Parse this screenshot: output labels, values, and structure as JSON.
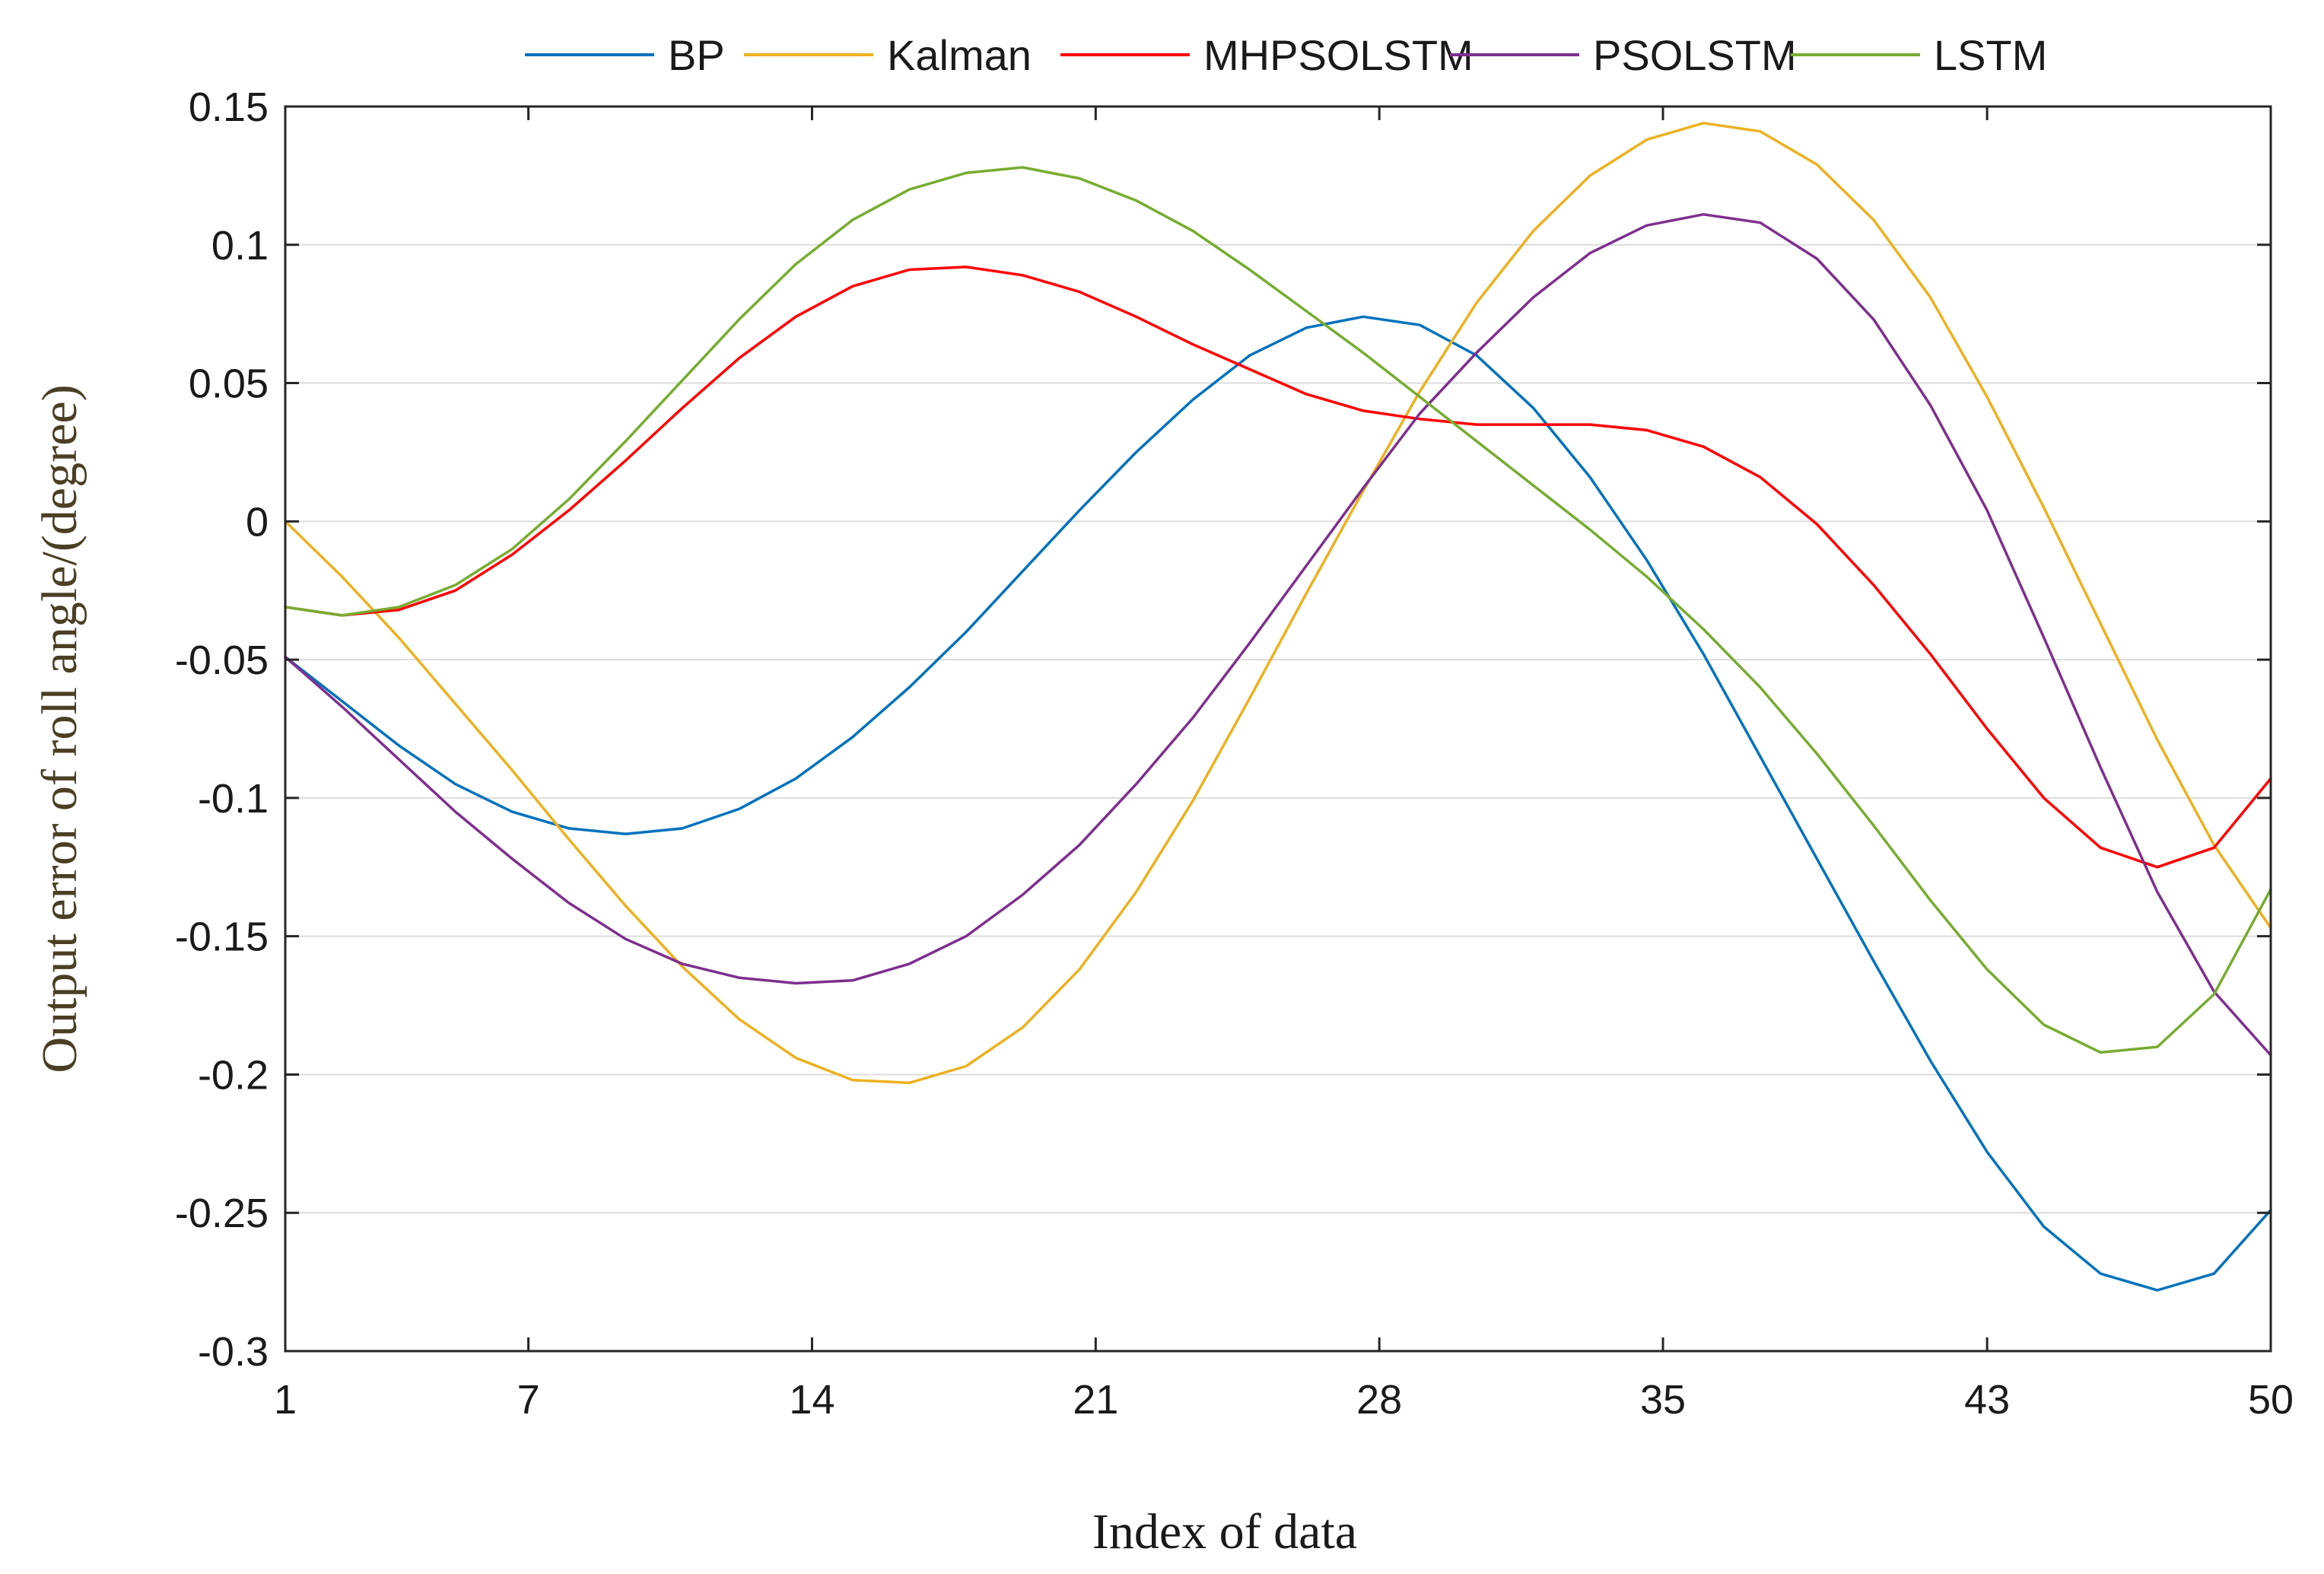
{
  "chart_data": {
    "type": "line",
    "title": "",
    "xlabel": "Index of data",
    "ylabel": "Output error of roll angle/(degree)",
    "xlim": [
      1,
      50
    ],
    "ylim": [
      -0.3,
      0.15
    ],
    "grid": "horizontal",
    "legend_position": "top",
    "x_ticks": [
      "1",
      "7",
      "14",
      "21",
      "28",
      "35",
      "43",
      "50"
    ],
    "y_ticks": [
      "0.15",
      "0.1",
      "0.05",
      "0",
      "-0.05",
      "-0.1",
      "-0.15",
      "-0.2",
      "-0.25",
      "-0.3"
    ],
    "x": [
      1,
      2.4,
      3.8,
      5.2,
      6.6,
      8.0,
      9.4,
      10.8,
      12.2,
      13.6,
      15.0,
      16.4,
      17.8,
      19.2,
      20.6,
      22.0,
      23.4,
      24.8,
      26.2,
      27.6,
      29.0,
      30.4,
      31.8,
      33.2,
      34.6,
      36.0,
      37.4,
      38.8,
      40.2,
      41.6,
      43.0,
      44.4,
      45.8,
      47.2,
      48.6,
      50.0
    ],
    "series": [
      {
        "name": "BP",
        "color": "#0072BD",
        "values": [
          -0.049,
          -0.065,
          -0.081,
          -0.095,
          -0.105,
          -0.111,
          -0.113,
          -0.111,
          -0.104,
          -0.093,
          -0.078,
          -0.06,
          -0.04,
          -0.018,
          0.004,
          0.025,
          0.044,
          0.06,
          0.07,
          0.074,
          0.071,
          0.06,
          0.041,
          0.016,
          -0.014,
          -0.048,
          -0.085,
          -0.122,
          -0.159,
          -0.195,
          -0.228,
          -0.255,
          -0.272,
          -0.278,
          -0.272,
          -0.249
        ]
      },
      {
        "name": "Kalman",
        "color": "#EDB120",
        "values": [
          0.0,
          -0.02,
          -0.042,
          -0.066,
          -0.09,
          -0.115,
          -0.139,
          -0.161,
          -0.18,
          -0.194,
          -0.202,
          -0.203,
          -0.197,
          -0.183,
          -0.162,
          -0.134,
          -0.101,
          -0.064,
          -0.026,
          0.011,
          0.047,
          0.079,
          0.105,
          0.125,
          0.138,
          0.144,
          0.141,
          0.129,
          0.109,
          0.081,
          0.045,
          0.005,
          -0.037,
          -0.079,
          -0.117,
          -0.147
        ]
      },
      {
        "name": "MHPSOLSTM",
        "color": "#FF0000",
        "values": [
          -0.031,
          -0.034,
          -0.032,
          -0.025,
          -0.012,
          0.004,
          0.022,
          0.041,
          0.059,
          0.074,
          0.085,
          0.091,
          0.092,
          0.089,
          0.083,
          0.074,
          0.064,
          0.055,
          0.046,
          0.04,
          0.037,
          0.035,
          0.035,
          0.035,
          0.033,
          0.027,
          0.016,
          -0.001,
          -0.023,
          -0.048,
          -0.075,
          -0.1,
          -0.118,
          -0.125,
          -0.118,
          -0.093
        ]
      },
      {
        "name": "PSOLSTM",
        "color": "#7E2F8E",
        "values": [
          -0.049,
          -0.067,
          -0.086,
          -0.105,
          -0.122,
          -0.138,
          -0.151,
          -0.16,
          -0.165,
          -0.167,
          -0.166,
          -0.16,
          -0.15,
          -0.135,
          -0.117,
          -0.095,
          -0.071,
          -0.044,
          -0.016,
          0.012,
          0.039,
          0.061,
          0.081,
          0.097,
          0.107,
          0.111,
          0.108,
          0.095,
          0.073,
          0.042,
          0.004,
          -0.042,
          -0.089,
          -0.134,
          -0.17,
          -0.193
        ]
      },
      {
        "name": "LSTM",
        "color": "#77AC30",
        "values": [
          -0.031,
          -0.034,
          -0.031,
          -0.023,
          -0.01,
          0.008,
          0.029,
          0.051,
          0.073,
          0.093,
          0.109,
          0.12,
          0.126,
          0.128,
          0.124,
          0.116,
          0.105,
          0.091,
          0.076,
          0.061,
          0.045,
          0.029,
          0.013,
          -0.003,
          -0.02,
          -0.039,
          -0.06,
          -0.084,
          -0.11,
          -0.137,
          -0.162,
          -0.182,
          -0.192,
          -0.19,
          -0.171,
          -0.133
        ]
      }
    ]
  }
}
